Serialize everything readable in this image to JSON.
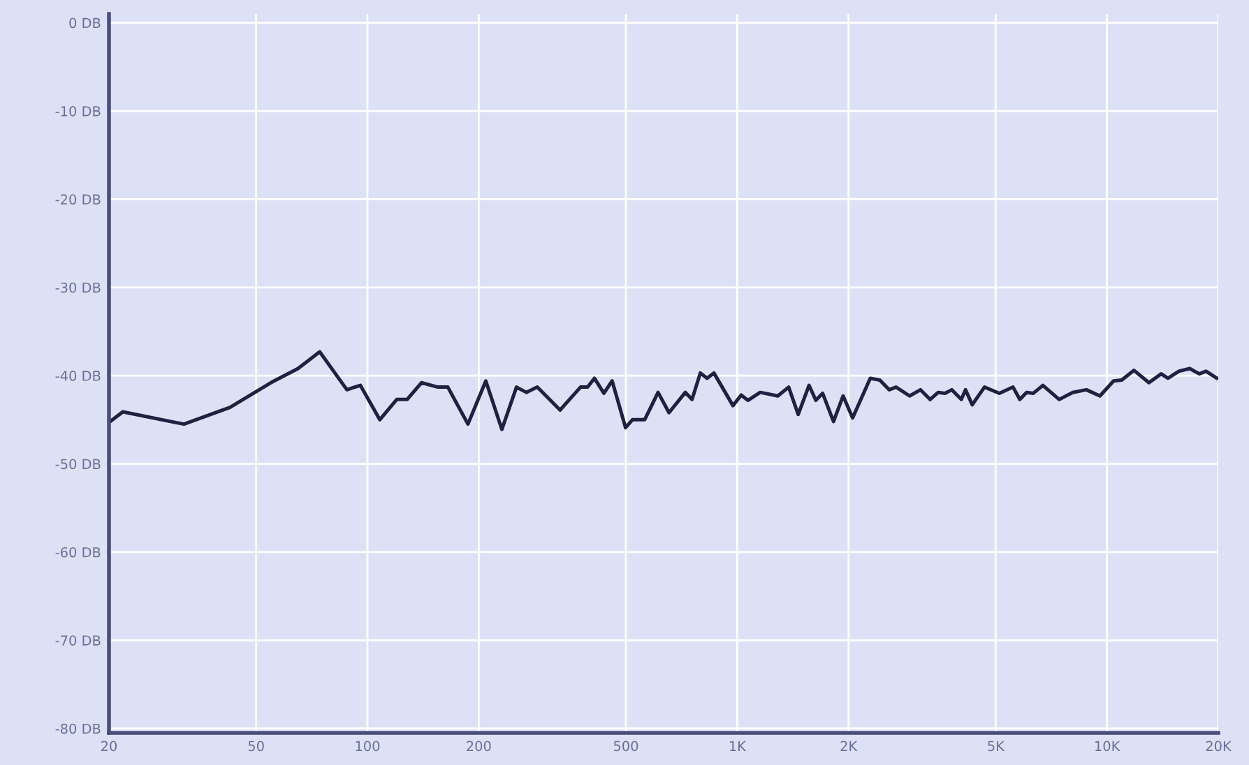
{
  "chart_data": {
    "type": "line",
    "log": "x",
    "grid": true,
    "marker": "none",
    "line_style": "solid",
    "xlim": [
      20,
      20000
    ],
    "ylim": [
      -80.5,
      1
    ],
    "xticks": [
      20,
      50,
      100,
      200,
      500,
      {
        "value": 1000,
        "label": "1K"
      },
      {
        "value": 2000,
        "label": "2K"
      },
      {
        "value": 5000,
        "label": "5K"
      },
      {
        "value": 10000,
        "label": "10K"
      },
      {
        "value": 20000,
        "label": "20K"
      }
    ],
    "yticks": [
      {
        "value": 0,
        "label": "0 DB"
      },
      {
        "value": -10,
        "label": "-10 DB"
      },
      {
        "value": -20,
        "label": "-20 DB"
      },
      {
        "value": -30,
        "label": "-30 DB"
      },
      {
        "value": -40,
        "label": "-40 DB"
      },
      {
        "value": -50,
        "label": "-50 DB"
      },
      {
        "value": -60,
        "label": "-60 DB"
      },
      {
        "value": -70,
        "label": "-70 DB"
      },
      {
        "value": -80,
        "label": "-80 DB"
      }
    ],
    "series": [
      {
        "color": "#1e2140",
        "x": [
          20,
          21.8,
          31.9,
          42.5,
          54.8,
          64.9,
          74.3,
          88,
          95.7,
          108,
          120,
          128,
          140,
          155,
          165,
          187,
          209,
          231,
          253,
          269,
          288,
          332,
          377,
          394,
          411,
          436,
          459,
          499,
          521,
          562,
          611,
          654,
          724,
          755,
          795,
          829,
          865,
          974,
          1025,
          1069,
          1154,
          1288,
          1378,
          1462,
          1564,
          1632,
          1702,
          1822,
          1934,
          2052,
          2290,
          2430,
          2578,
          2690,
          2926,
          3132,
          3324,
          3496,
          3648,
          3806,
          4038,
          4144,
          4322,
          4664,
          5118,
          5572,
          5812,
          6062,
          6324,
          6710,
          7430,
          8084,
          8798,
          9572,
          10424,
          10966,
          11834,
          12986,
          14016,
          14622,
          15646,
          16742,
          17766,
          18534,
          19830
        ],
        "values": [
          -45.3,
          -44.1,
          -45.5,
          -43.6,
          -40.8,
          -39.2,
          -37.3,
          -41.6,
          -41.1,
          -45.0,
          -42.7,
          -42.7,
          -40.8,
          -41.3,
          -41.3,
          -45.5,
          -40.6,
          -46.1,
          -41.3,
          -41.9,
          -41.3,
          -43.9,
          -41.3,
          -41.3,
          -40.3,
          -42.0,
          -40.6,
          -45.9,
          -45.0,
          -45.0,
          -41.9,
          -44.2,
          -41.9,
          -42.7,
          -39.7,
          -40.3,
          -39.7,
          -43.4,
          -42.2,
          -42.8,
          -41.9,
          -42.3,
          -41.3,
          -44.4,
          -41.1,
          -42.8,
          -42.0,
          -45.2,
          -42.3,
          -44.8,
          -40.3,
          -40.5,
          -41.6,
          -41.3,
          -42.3,
          -41.6,
          -42.7,
          -41.9,
          -42.0,
          -41.6,
          -42.7,
          -41.6,
          -43.3,
          -41.3,
          -42.0,
          -41.3,
          -42.7,
          -41.9,
          -42.0,
          -41.1,
          -42.7,
          -41.9,
          -41.6,
          -42.3,
          -40.6,
          -40.5,
          -39.4,
          -40.8,
          -39.8,
          -40.3,
          -39.5,
          -39.2,
          -39.8,
          -39.5,
          -40.3
        ]
      }
    ]
  }
}
